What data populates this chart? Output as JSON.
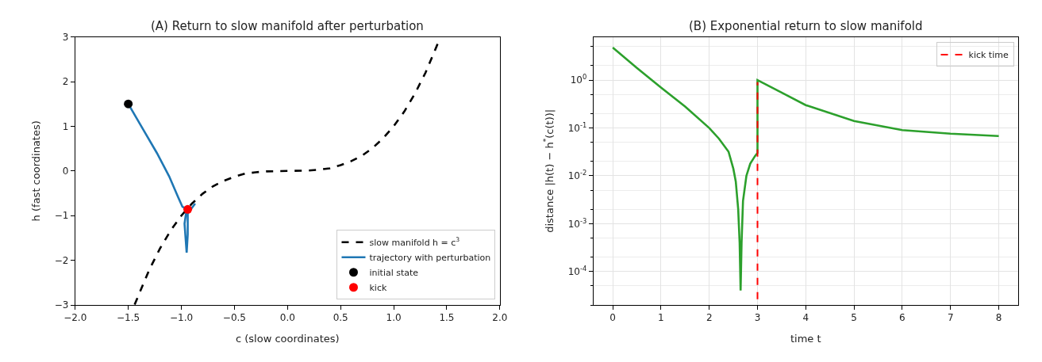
{
  "chart_data": [
    {
      "type": "line",
      "title": "(A) Return to slow manifold after perturbation",
      "xlabel": "c (slow coordinates)",
      "ylabel": "h (fast coordinates)",
      "xlim": [
        -2,
        2
      ],
      "ylim": [
        -3,
        3
      ],
      "xticks": [
        {
          "value": -2,
          "label": "−2.0"
        },
        {
          "value": -1.5,
          "label": "−1.5"
        },
        {
          "value": -1,
          "label": "−1.0"
        },
        {
          "value": -0.5,
          "label": "−0.5"
        },
        {
          "value": 0,
          "label": "0.0"
        },
        {
          "value": 0.5,
          "label": "0.5"
        },
        {
          "value": 1,
          "label": "1.0"
        },
        {
          "value": 1.5,
          "label": "1.5"
        },
        {
          "value": 2,
          "label": "2.0"
        }
      ],
      "yticks": [
        {
          "value": -3,
          "label": "−3"
        },
        {
          "value": -2,
          "label": "−2"
        },
        {
          "value": -1,
          "label": "−1"
        },
        0,
        1,
        2,
        3
      ],
      "legend": "bottom right",
      "series": [
        {
          "name": "slow manifold h = c$^{3}$",
          "color": "#000000",
          "line_style": "dashed",
          "x": [
            -1.44,
            -1.3,
            -1.2,
            -1.1,
            -1.0,
            -0.9,
            -0.8,
            -0.7,
            -0.6,
            -0.5,
            -0.4,
            -0.3,
            -0.2,
            0.0,
            0.2,
            0.3,
            0.4,
            0.5,
            0.6,
            0.7,
            0.8,
            0.9,
            1.0,
            1.1,
            1.2,
            1.3,
            1.44
          ],
          "values": [
            -2.99,
            -2.2,
            -1.73,
            -1.33,
            -1.0,
            -0.73,
            -0.51,
            -0.34,
            -0.22,
            -0.13,
            -0.06,
            -0.03,
            -0.01,
            0.0,
            0.01,
            0.03,
            0.06,
            0.13,
            0.22,
            0.34,
            0.51,
            0.73,
            1.0,
            1.33,
            1.73,
            2.2,
            2.99
          ]
        },
        {
          "name": "trajectory with perturbation",
          "color": "#1f77b4",
          "line_style": "solid",
          "x": [
            -1.5,
            -1.36,
            -1.23,
            -1.115,
            -1.03,
            -0.99,
            -0.95,
            -0.97,
            -0.95,
            -0.94,
            -0.94,
            -0.87
          ],
          "values": [
            1.5,
            0.93,
            0.4,
            -0.12,
            -0.59,
            -0.8,
            -0.86,
            -1.18,
            -1.83,
            -1.42,
            -0.95,
            -0.73
          ]
        },
        {
          "name": "initial state",
          "type": "scatter",
          "color": "#000000",
          "marker": "circle",
          "x": [
            -1.5
          ],
          "values": [
            1.5
          ]
        },
        {
          "name": "kick",
          "type": "scatter",
          "color": "#ff0000",
          "marker": "circle",
          "x": [
            -0.94
          ],
          "values": [
            -0.86
          ]
        }
      ]
    },
    {
      "type": "line",
      "title": "(B) Exponential return to slow manifold",
      "xlabel": "time t",
      "ylabel": "distance |h(t) − h$^{*}$(c(t))|",
      "xlim": [
        -0.4,
        8.4
      ],
      "ylim": [
        2e-05,
        8
      ],
      "log": "y",
      "xticks": [
        0,
        1,
        2,
        3,
        4,
        5,
        6,
        7,
        8
      ],
      "yticks": [
        {
          "value": 0.0001,
          "label": "10$^{-4}$"
        },
        {
          "value": 0.001,
          "label": "10$^{-3}$"
        },
        {
          "value": 0.01,
          "label": "10$^{-2}$"
        },
        {
          "value": 0.1,
          "label": "10$^{-1}$"
        },
        {
          "value": 1,
          "label": "10$^{0}$"
        }
      ],
      "grid": true,
      "legend": "top right",
      "ref_lines": [
        {
          "axis": "x",
          "value": 3,
          "label": "kick time",
          "color": "#ff0000",
          "line_style": "dashed"
        }
      ],
      "series": [
        {
          "color": "#2ca02c",
          "line_style": "solid",
          "x": [
            0,
            0.5,
            1,
            1.5,
            2,
            2.2,
            2.4,
            2.5,
            2.55,
            2.6,
            2.63,
            2.65,
            2.67,
            2.7,
            2.77,
            2.85,
            2.95,
            3,
            3,
            3.5,
            4,
            5,
            6,
            7,
            8
          ],
          "values": [
            4.8,
            1.8,
            0.7,
            0.28,
            0.1,
            0.06,
            0.032,
            0.014,
            0.0076,
            0.002,
            0.0004,
            4e-05,
            0.0004,
            0.003,
            0.01,
            0.018,
            0.026,
            0.03,
            1.0,
            0.55,
            0.3,
            0.14,
            0.09,
            0.076,
            0.068
          ]
        }
      ]
    }
  ]
}
